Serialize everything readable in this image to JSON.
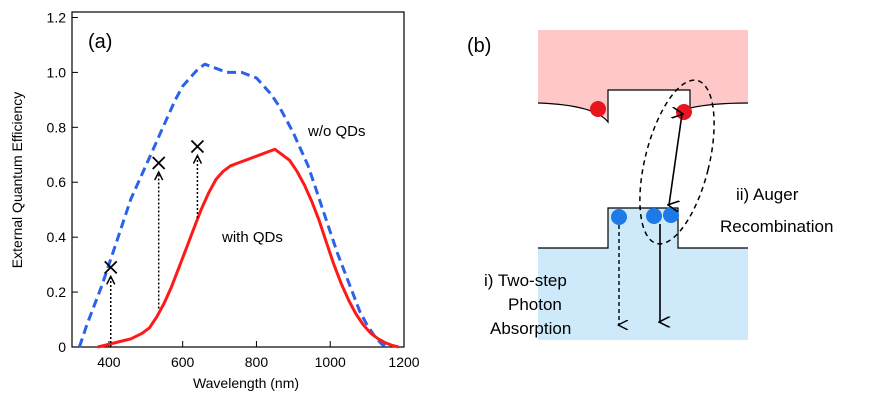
{
  "chart_data": [
    {
      "type": "line",
      "panel_label": "(a)",
      "xlabel": "Wavelength (nm)",
      "ylabel": "External Quantum Efficiency",
      "xlim": [
        300,
        1200
      ],
      "ylim": [
        0,
        1.22
      ],
      "xticks": [
        400,
        600,
        800,
        1000,
        1200
      ],
      "yticks": [
        0,
        0.2,
        0.4,
        0.6,
        0.8,
        1.0,
        1.2
      ],
      "ytick_labels": [
        "0",
        "0.2",
        "0.4",
        "0.6",
        "0.8",
        "1.0",
        "1.2"
      ],
      "grid": false,
      "colors": {
        "series0": "#2a62ea",
        "series1": "#ff1a1a"
      },
      "series": [
        {
          "name": "w/o QDs",
          "style": "dashed",
          "x": [
            320,
            340,
            360,
            380,
            400,
            420,
            440,
            460,
            480,
            500,
            520,
            540,
            560,
            580,
            600,
            620,
            640,
            660,
            680,
            700,
            720,
            740,
            760,
            780,
            800,
            820,
            840,
            860,
            880,
            900,
            920,
            940,
            960,
            980,
            1000,
            1020,
            1040,
            1060,
            1080,
            1100,
            1120,
            1140,
            1160
          ],
          "y": [
            0.0,
            0.08,
            0.15,
            0.22,
            0.3,
            0.38,
            0.46,
            0.54,
            0.6,
            0.66,
            0.72,
            0.78,
            0.84,
            0.9,
            0.95,
            0.98,
            1.01,
            1.03,
            1.02,
            1.01,
            1.0,
            1.0,
            1.0,
            0.99,
            0.98,
            0.95,
            0.92,
            0.88,
            0.83,
            0.78,
            0.72,
            0.66,
            0.58,
            0.5,
            0.42,
            0.34,
            0.27,
            0.2,
            0.13,
            0.08,
            0.04,
            0.01,
            0.0
          ]
        },
        {
          "name": "with QDs",
          "style": "solid",
          "x": [
            370,
            400,
            430,
            460,
            490,
            510,
            530,
            550,
            570,
            590,
            610,
            630,
            650,
            670,
            690,
            710,
            730,
            750,
            770,
            790,
            810,
            830,
            850,
            870,
            890,
            910,
            930,
            950,
            970,
            990,
            1010,
            1030,
            1050,
            1070,
            1090,
            1110,
            1130,
            1150,
            1170,
            1185
          ],
          "y": [
            0.0,
            0.01,
            0.02,
            0.03,
            0.05,
            0.07,
            0.11,
            0.16,
            0.22,
            0.29,
            0.36,
            0.43,
            0.5,
            0.56,
            0.61,
            0.64,
            0.66,
            0.67,
            0.68,
            0.69,
            0.7,
            0.71,
            0.72,
            0.7,
            0.68,
            0.64,
            0.59,
            0.53,
            0.46,
            0.38,
            0.3,
            0.23,
            0.17,
            0.12,
            0.08,
            0.05,
            0.03,
            0.015,
            0.005,
            0.0
          ]
        }
      ],
      "markers": [
        {
          "x": 405,
          "y_from": 0.0,
          "y_to": 0.29
        },
        {
          "x": 535,
          "y_from": 0.14,
          "y_to": 0.67
        },
        {
          "x": 640,
          "y_from": 0.47,
          "y_to": 0.73
        }
      ],
      "annotations": [
        "w/o QDs",
        "with QDs"
      ]
    },
    {
      "type": "diagram",
      "panel_label": "(b)",
      "labels": [
        "i) Two-step",
        "Photon",
        "Absorption",
        "ii) Auger",
        "Recombination"
      ],
      "colors": {
        "conduction": "#ffc8c8",
        "valence": "#cde9fa",
        "electron": "#e8141e",
        "hole": "#1e7ae6"
      }
    }
  ]
}
